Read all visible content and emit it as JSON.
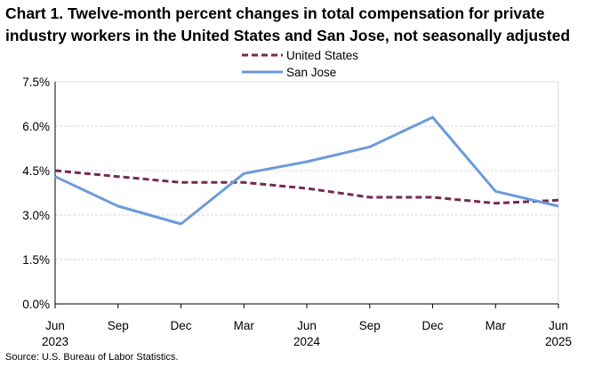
{
  "title": "Chart 1. Twelve-month percent changes in total compensation for private industry workers in the United States and San Jose, not seasonally adjusted",
  "source": "Source: U.S. Bureau of Labor Statistics.",
  "chart_data": {
    "type": "line",
    "title": "Chart 1. Twelve-month percent changes in total compensation for private industry workers in the United States and San Jose, not seasonally adjusted",
    "xlabel": "",
    "ylabel": "",
    "categories": [
      "Jun 2023",
      "Sep 2023",
      "Dec 2023",
      "Mar 2024",
      "Jun 2024",
      "Sep 2024",
      "Dec 2024",
      "Mar 2025",
      "Jun 2025"
    ],
    "x_tick_labels": [
      {
        "month": "Jun",
        "year": "2023"
      },
      {
        "month": "Sep",
        "year": ""
      },
      {
        "month": "Dec",
        "year": ""
      },
      {
        "month": "Mar",
        "year": ""
      },
      {
        "month": "Jun",
        "year": "2024"
      },
      {
        "month": "Sep",
        "year": ""
      },
      {
        "month": "Dec",
        "year": ""
      },
      {
        "month": "Mar",
        "year": ""
      },
      {
        "month": "Jun",
        "year": "2025"
      }
    ],
    "ylim": [
      0,
      7.5
    ],
    "y_ticks": [
      0,
      1.5,
      3.0,
      4.5,
      6.0,
      7.5
    ],
    "y_tick_labels": [
      "0.0%",
      "1.5%",
      "3.0%",
      "4.5%",
      "6.0%",
      "7.5%"
    ],
    "grid": true,
    "legend_position": "top-center",
    "series": [
      {
        "name": "United States",
        "color": "#772953",
        "style": "dashed",
        "values": [
          4.5,
          4.3,
          4.1,
          4.1,
          3.9,
          3.6,
          3.6,
          3.4,
          3.5
        ]
      },
      {
        "name": "San Jose",
        "color": "#6b9bd8",
        "style": "solid",
        "values": [
          4.3,
          3.3,
          2.7,
          4.4,
          4.8,
          5.3,
          6.3,
          3.8,
          3.3
        ]
      }
    ]
  }
}
